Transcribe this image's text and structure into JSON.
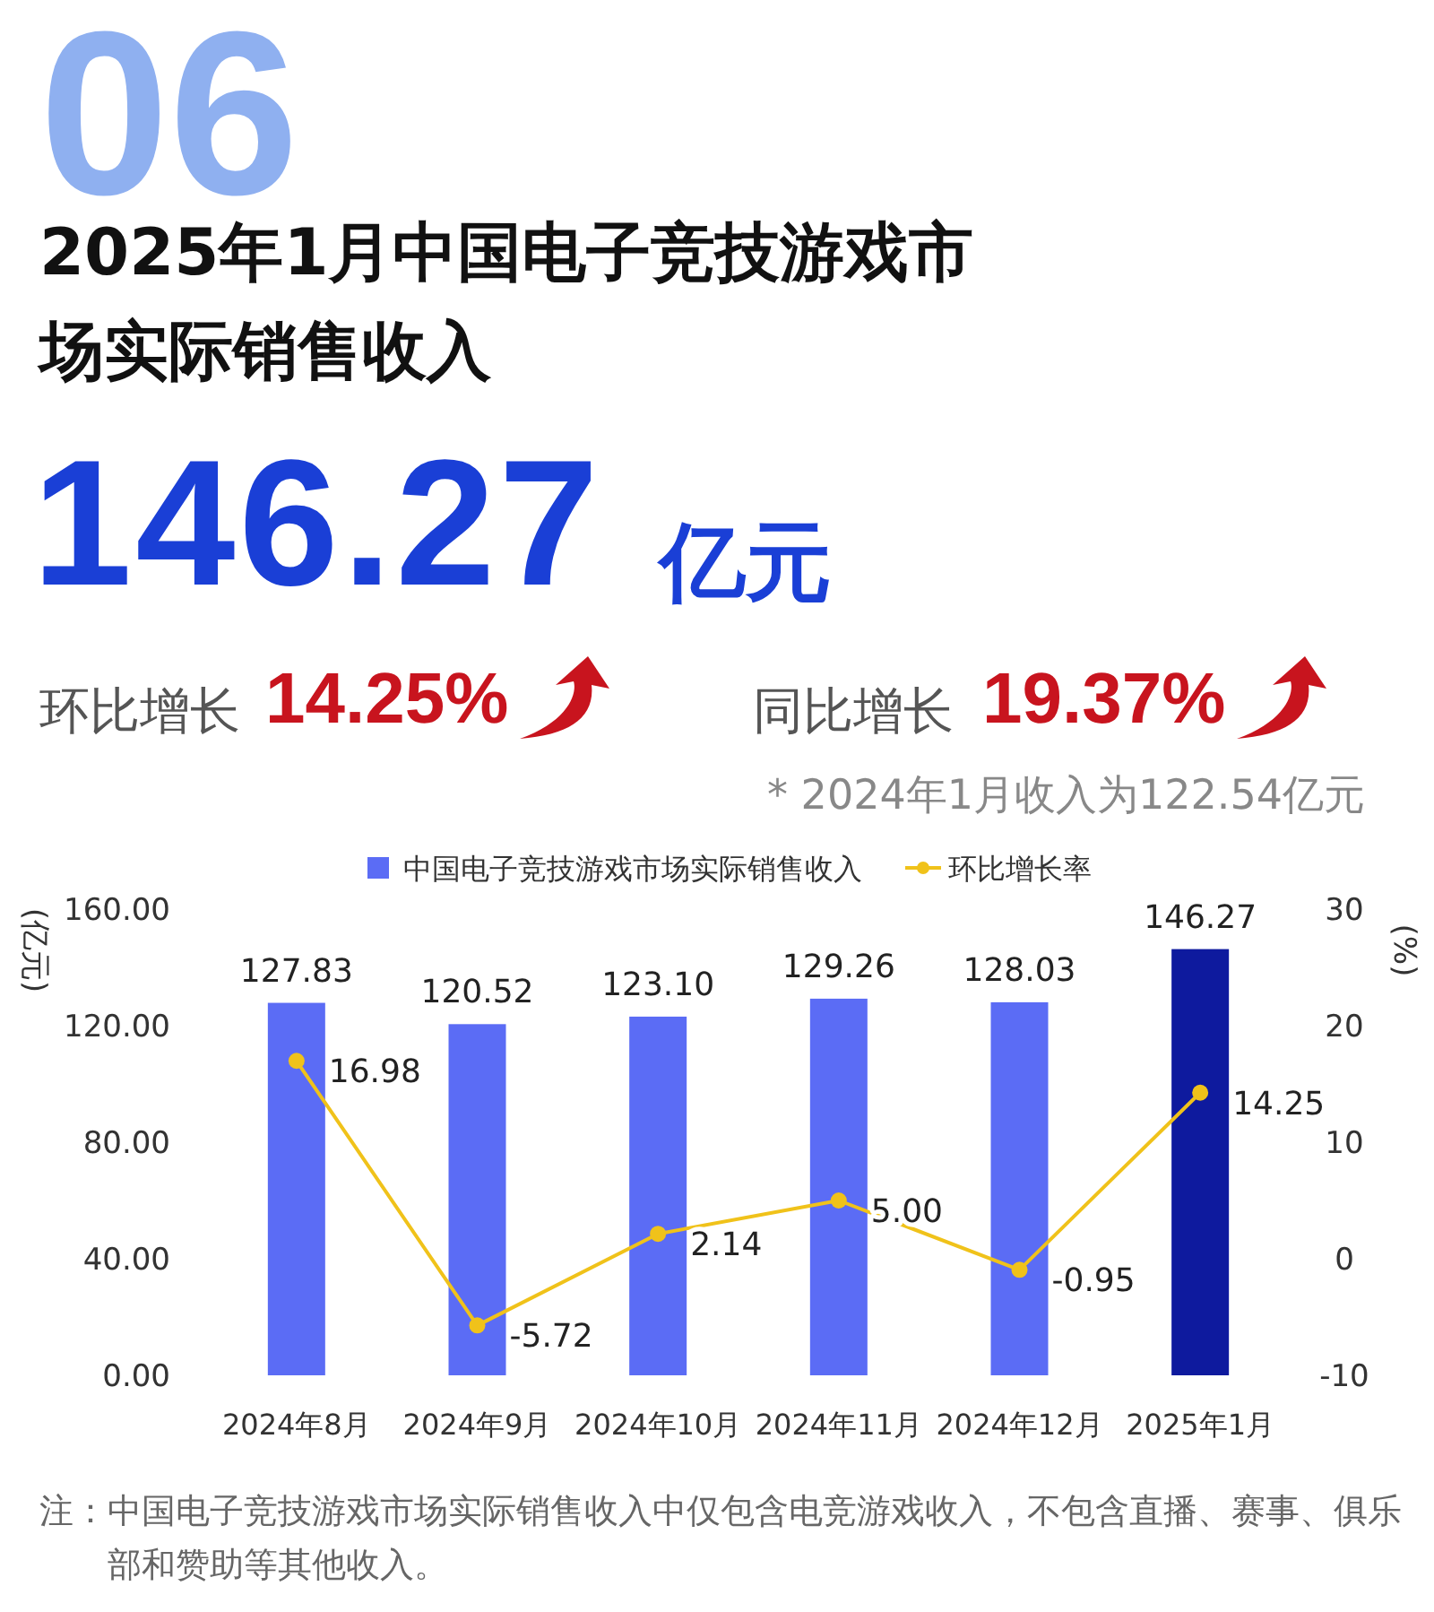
{
  "chart_data": {
    "type": "bar",
    "title": "2025年1月中国电子竞技游戏市场实际销售收入",
    "annotations": [
      "06",
      "146.27",
      "亿元",
      "环比增长",
      "14.25%",
      "同比增长",
      "19.37%",
      "* 2024年1月收入为122.54亿元",
      "注：中国电子竞技游戏市场实际销售收入中仅包含电竞游戏收入，不包含直播、赛事、俱乐部和赞助等其他收入。"
    ],
    "categories": [
      "2024年8月",
      "2024年9月",
      "2024年10月",
      "2024年11月",
      "2024年12月",
      "2025年1月"
    ],
    "series": [
      {
        "name": "中国电子竞技游戏市场实际销售收入",
        "color": "#5b6cf5",
        "colors": [
          "#5b6cf5",
          "#5b6cf5",
          "#5b6cf5",
          "#5b6cf5",
          "#5b6cf5",
          "#0e1a9e"
        ],
        "values": [
          127.83,
          120.52,
          123.1,
          129.26,
          128.03,
          146.27
        ],
        "value_labels": [
          "127.83",
          "120.52",
          "123.10",
          "129.26",
          "128.03",
          "146.27"
        ]
      },
      {
        "name": "环比增长率",
        "type": "line",
        "axis": "y2",
        "color": "#f0c21a",
        "marker": "circle",
        "values": [
          16.98,
          -5.72,
          2.14,
          5.0,
          -0.95,
          14.25
        ],
        "value_labels": [
          "16.98",
          "-5.72",
          "2.14",
          "5.00",
          "-0.95",
          "14.25"
        ]
      }
    ],
    "ylabel": "(亿元)",
    "y2label": "(%)",
    "ylim": [
      0,
      160
    ],
    "yticks": [
      {
        "value": 0,
        "label": "0.00"
      },
      {
        "value": 40,
        "label": "40.00"
      },
      {
        "value": 80,
        "label": "80.00"
      },
      {
        "value": 120,
        "label": "120.00"
      },
      {
        "value": 160,
        "label": "160.00"
      }
    ],
    "y2lim": [
      -10,
      30
    ],
    "y2ticks": [
      -10,
      0,
      10,
      20,
      30
    ],
    "legend": "top"
  }
}
